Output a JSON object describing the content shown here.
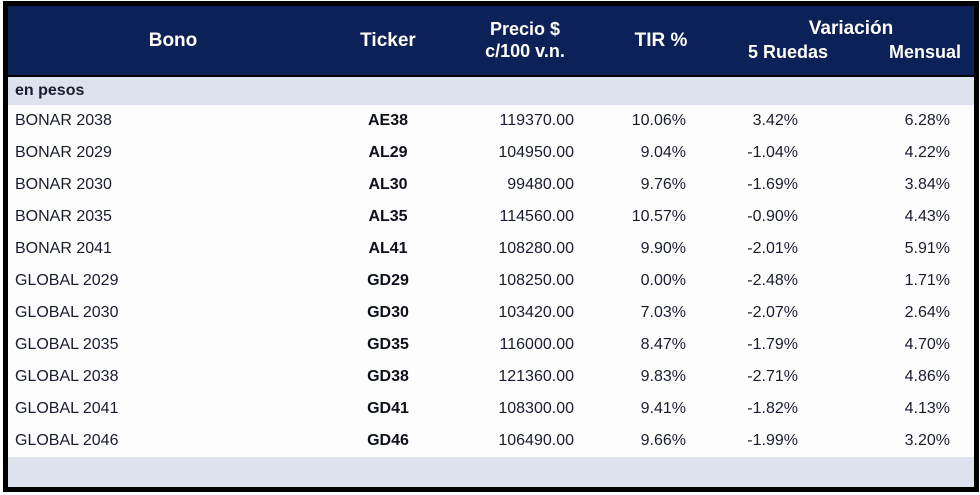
{
  "header": {
    "bono": "Bono",
    "ticker": "Ticker",
    "precio_line1": "Precio $",
    "precio_line2": "c/100 v.n.",
    "tir": "TIR %",
    "variacion": "Variación",
    "ruedas5": "5 Ruedas",
    "mensual": "Mensual"
  },
  "section_label": "en pesos",
  "chart_data": {
    "type": "table",
    "columns": [
      "Bono",
      "Ticker",
      "Precio $ c/100 v.n.",
      "TIR %",
      "Variación 5 Ruedas",
      "Variación Mensual"
    ],
    "rows": [
      {
        "bono": "BONAR 2038",
        "ticker": "AE38",
        "precio": "119370.00",
        "tir": "10.06%",
        "ruedas5": "3.42%",
        "mensual": "6.28%"
      },
      {
        "bono": "BONAR 2029",
        "ticker": "AL29",
        "precio": "104950.00",
        "tir": "9.04%",
        "ruedas5": "-1.04%",
        "mensual": "4.22%"
      },
      {
        "bono": "BONAR 2030",
        "ticker": "AL30",
        "precio": "99480.00",
        "tir": "9.76%",
        "ruedas5": "-1.69%",
        "mensual": "3.84%"
      },
      {
        "bono": "BONAR 2035",
        "ticker": "AL35",
        "precio": "114560.00",
        "tir": "10.57%",
        "ruedas5": "-0.90%",
        "mensual": "4.43%"
      },
      {
        "bono": "BONAR 2041",
        "ticker": "AL41",
        "precio": "108280.00",
        "tir": "9.90%",
        "ruedas5": "-2.01%",
        "mensual": "5.91%"
      },
      {
        "bono": "GLOBAL 2029",
        "ticker": "GD29",
        "precio": "108250.00",
        "tir": "0.00%",
        "ruedas5": "-2.48%",
        "mensual": "1.71%"
      },
      {
        "bono": "GLOBAL 2030",
        "ticker": "GD30",
        "precio": "103420.00",
        "tir": "7.03%",
        "ruedas5": "-2.07%",
        "mensual": "2.64%"
      },
      {
        "bono": "GLOBAL 2035",
        "ticker": "GD35",
        "precio": "116000.00",
        "tir": "8.47%",
        "ruedas5": "-1.79%",
        "mensual": "4.70%"
      },
      {
        "bono": "GLOBAL 2038",
        "ticker": "GD38",
        "precio": "121360.00",
        "tir": "9.83%",
        "ruedas5": "-2.71%",
        "mensual": "4.86%"
      },
      {
        "bono": "GLOBAL 2041",
        "ticker": "GD41",
        "precio": "108300.00",
        "tir": "9.41%",
        "ruedas5": "-1.82%",
        "mensual": "4.13%"
      },
      {
        "bono": "GLOBAL 2046",
        "ticker": "GD46",
        "precio": "106490.00",
        "tir": "9.66%",
        "ruedas5": "-1.99%",
        "mensual": "3.20%"
      }
    ]
  },
  "colors": {
    "header_bg": "#0c2157",
    "header_text": "#fffdf9",
    "section_bg": "#dce3ef",
    "row_bg": "#fdfdfe",
    "text": "#191c2e",
    "ticker_text": "#0d0f1a",
    "border": "#000000"
  }
}
